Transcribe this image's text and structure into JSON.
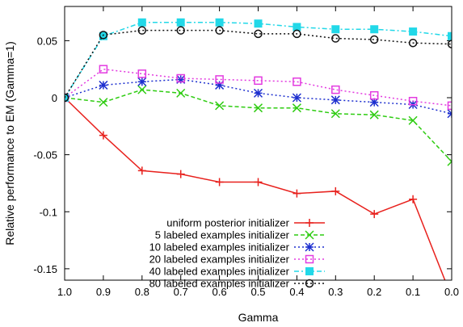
{
  "chart_data": {
    "type": "line",
    "title": "",
    "xlabel": "Gamma",
    "ylabel": "Relative performance to EM (Gamma=1)",
    "x": [
      1.0,
      0.9,
      0.8,
      0.7,
      0.6,
      0.5,
      0.4,
      0.3,
      0.2,
      0.1,
      0.0
    ],
    "x_tick_labels": [
      "1.0",
      "0.9",
      "0.8",
      "0.7",
      "0.6",
      "0.5",
      "0.4",
      "0.3",
      "0.2",
      "0.1",
      "0.0"
    ],
    "xlim": [
      1.0,
      0.0
    ],
    "ylim": [
      -0.16,
      0.08
    ],
    "y_ticks": [
      0.05,
      0,
      -0.05,
      -0.1,
      -0.15
    ],
    "y_tick_labels": [
      "0.05",
      "0",
      "-0.05",
      "-0.1",
      "-0.15"
    ],
    "grid": false,
    "legend_position": "bottom-right",
    "series": [
      {
        "name": "uniform posterior initializer",
        "color": "#e8211d",
        "marker": "plus",
        "dash": "solid",
        "values": [
          0.0,
          -0.033,
          -0.064,
          -0.067,
          -0.074,
          -0.074,
          -0.084,
          -0.082,
          -0.102,
          -0.089,
          -0.175
        ]
      },
      {
        "name": "5 labeled examples initializer",
        "color": "#2ecc11",
        "marker": "cross",
        "dash": "dashed",
        "values": [
          0.0,
          -0.004,
          0.007,
          0.004,
          -0.007,
          -0.009,
          -0.009,
          -0.014,
          -0.015,
          -0.02,
          -0.056
        ]
      },
      {
        "name": "10 labeled examples initializer",
        "color": "#1d2fcf",
        "marker": "star",
        "dash": "dotted",
        "values": [
          0.0,
          0.011,
          0.014,
          0.016,
          0.011,
          0.004,
          0.0,
          -0.002,
          -0.004,
          -0.006,
          -0.014
        ]
      },
      {
        "name": "20 labeled examples initializer",
        "color": "#e33be0",
        "marker": "square",
        "dash": "dotted",
        "values": [
          0.0,
          0.025,
          0.021,
          0.017,
          0.016,
          0.015,
          0.014,
          0.007,
          0.002,
          -0.003,
          -0.007
        ]
      },
      {
        "name": "40 labeled examples initializer",
        "color": "#22d8e8",
        "marker": "filled-square",
        "dash": "dashdot",
        "values": [
          0.0,
          0.054,
          0.066,
          0.066,
          0.066,
          0.065,
          0.062,
          0.06,
          0.06,
          0.058,
          0.054
        ]
      },
      {
        "name": "80 labeled examples initializer",
        "color": "#111111",
        "marker": "circle",
        "dash": "dotted",
        "values": [
          0.0,
          0.055,
          0.059,
          0.059,
          0.059,
          0.056,
          0.056,
          0.052,
          0.051,
          0.048,
          0.047
        ]
      }
    ]
  }
}
